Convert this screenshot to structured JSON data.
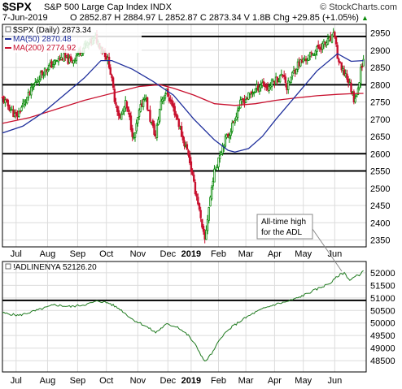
{
  "header": {
    "symbol": "$SPX",
    "name": "S&P 500 Large Cap Index INDX",
    "date": "7-Jun-2019",
    "ohlc": "O 2852.87  H 2884.97  L 2852.87  C 2873.34  V 1.8B  Chg +29.85 (+1.05%)",
    "chg_arrow": "▲",
    "source": "© StockCharts.com"
  },
  "colors": {
    "up_candle": "#0a8a0a",
    "down_candle": "#c8102e",
    "ma50": "#1f2f9c",
    "ma200": "#c8102e",
    "adl": "#1f7a1f",
    "grid": "#dcdcdc",
    "horizontal_lines": "#000000"
  },
  "chart_data": [
    {
      "type": "candlestick",
      "legend": [
        {
          "label": "$SPX (Daily) 2873.34"
        },
        {
          "label": "MA(50) 2870.48",
          "color": "#1f2f9c"
        },
        {
          "label": "MA(200) 2774.92",
          "color": "#c8102e"
        }
      ],
      "ylim": [
        2330,
        2975
      ],
      "yticks": [
        2350,
        2400,
        2450,
        2500,
        2550,
        2600,
        2650,
        2700,
        2750,
        2800,
        2850,
        2900,
        2950
      ],
      "hlines": [
        2940,
        2800,
        2600,
        2550
      ],
      "price_path": [
        [
          0,
          2760
        ],
        [
          5,
          2735
        ],
        [
          10,
          2705
        ],
        [
          15,
          2742
        ],
        [
          20,
          2775
        ],
        [
          25,
          2812
        ],
        [
          30,
          2840
        ],
        [
          35,
          2855
        ],
        [
          40,
          2870
        ],
        [
          45,
          2880
        ],
        [
          50,
          2865
        ],
        [
          55,
          2890
        ],
        [
          60,
          2910
        ],
        [
          65,
          2925
        ],
        [
          68,
          2935
        ],
        [
          72,
          2910
        ],
        [
          75,
          2890
        ],
        [
          78,
          2860
        ],
        [
          82,
          2760
        ],
        [
          86,
          2700
        ],
        [
          90,
          2745
        ],
        [
          93,
          2700
        ],
        [
          96,
          2640
        ],
        [
          100,
          2720
        ],
        [
          104,
          2770
        ],
        [
          108,
          2700
        ],
        [
          112,
          2650
        ],
        [
          116,
          2755
        ],
        [
          120,
          2780
        ],
        [
          124,
          2740
        ],
        [
          128,
          2700
        ],
        [
          132,
          2640
        ],
        [
          136,
          2600
        ],
        [
          140,
          2510
        ],
        [
          143,
          2460
        ],
        [
          146,
          2380
        ],
        [
          148,
          2350
        ],
        [
          151,
          2445
        ],
        [
          154,
          2530
        ],
        [
          158,
          2590
        ],
        [
          162,
          2635
        ],
        [
          166,
          2660
        ],
        [
          170,
          2705
        ],
        [
          174,
          2745
        ],
        [
          178,
          2760
        ],
        [
          182,
          2775
        ],
        [
          186,
          2790
        ],
        [
          190,
          2805
        ],
        [
          194,
          2790
        ],
        [
          198,
          2810
        ],
        [
          202,
          2820
        ],
        [
          206,
          2830
        ],
        [
          208,
          2790
        ],
        [
          212,
          2830
        ],
        [
          216,
          2860
        ],
        [
          220,
          2870
        ],
        [
          224,
          2880
        ],
        [
          228,
          2895
        ],
        [
          232,
          2910
        ],
        [
          236,
          2920
        ],
        [
          240,
          2930
        ],
        [
          243,
          2945
        ],
        [
          245,
          2880
        ],
        [
          248,
          2840
        ],
        [
          251,
          2830
        ],
        [
          254,
          2800
        ],
        [
          257,
          2760
        ],
        [
          260,
          2780
        ],
        [
          262,
          2850
        ],
        [
          264,
          2873
        ]
      ],
      "ma50": [
        [
          0,
          2660
        ],
        [
          15,
          2680
        ],
        [
          30,
          2720
        ],
        [
          45,
          2770
        ],
        [
          60,
          2820
        ],
        [
          72,
          2870
        ],
        [
          80,
          2870
        ],
        [
          95,
          2845
        ],
        [
          110,
          2810
        ],
        [
          125,
          2770
        ],
        [
          140,
          2700
        ],
        [
          155,
          2640
        ],
        [
          165,
          2610
        ],
        [
          170,
          2605
        ],
        [
          180,
          2615
        ],
        [
          190,
          2650
        ],
        [
          200,
          2700
        ],
        [
          215,
          2770
        ],
        [
          230,
          2840
        ],
        [
          245,
          2890
        ],
        [
          255,
          2868
        ],
        [
          264,
          2870
        ]
      ],
      "ma200": [
        [
          0,
          2688
        ],
        [
          20,
          2705
        ],
        [
          40,
          2730
        ],
        [
          60,
          2755
        ],
        [
          80,
          2775
        ],
        [
          100,
          2795
        ],
        [
          115,
          2800
        ],
        [
          125,
          2790
        ],
        [
          140,
          2770
        ],
        [
          155,
          2745
        ],
        [
          170,
          2740
        ],
        [
          185,
          2745
        ],
        [
          200,
          2755
        ],
        [
          215,
          2762
        ],
        [
          230,
          2768
        ],
        [
          245,
          2772
        ],
        [
          255,
          2774
        ],
        [
          264,
          2775
        ]
      ]
    },
    {
      "type": "line",
      "legend": [
        {
          "label": "!ADLINENYA 52126.20"
        }
      ],
      "ylim": [
        48050,
        52450
      ],
      "yticks": [
        48500,
        49000,
        49500,
        50000,
        50500,
        51000,
        51500,
        52000
      ],
      "hlines": [
        50900
      ],
      "annotation": "All-time high for the ADL",
      "values": [
        [
          0,
          50400
        ],
        [
          12,
          50300
        ],
        [
          25,
          50500
        ],
        [
          38,
          50720
        ],
        [
          50,
          50650
        ],
        [
          62,
          50750
        ],
        [
          70,
          50880
        ],
        [
          78,
          50790
        ],
        [
          86,
          50550
        ],
        [
          95,
          50150
        ],
        [
          104,
          49900
        ],
        [
          112,
          49620
        ],
        [
          120,
          49950
        ],
        [
          128,
          49850
        ],
        [
          136,
          49500
        ],
        [
          142,
          49050
        ],
        [
          148,
          48450
        ],
        [
          154,
          48850
        ],
        [
          160,
          49450
        ],
        [
          168,
          49850
        ],
        [
          176,
          50150
        ],
        [
          184,
          50400
        ],
        [
          192,
          50600
        ],
        [
          200,
          50750
        ],
        [
          208,
          50850
        ],
        [
          216,
          51000
        ],
        [
          224,
          51200
        ],
        [
          232,
          51400
        ],
        [
          240,
          51600
        ],
        [
          246,
          51900
        ],
        [
          250,
          52000
        ],
        [
          254,
          51700
        ],
        [
          258,
          51850
        ],
        [
          262,
          51950
        ],
        [
          264,
          52126
        ]
      ]
    }
  ],
  "x_axis": {
    "ticks": [
      {
        "label": "Jul",
        "x": 10
      },
      {
        "label": "Aug",
        "x": 33
      },
      {
        "label": "Sep",
        "x": 55
      },
      {
        "label": "Oct",
        "x": 76
      },
      {
        "label": "Nov",
        "x": 99
      },
      {
        "label": "Dec",
        "x": 121
      },
      {
        "label": "2019",
        "x": 138
      },
      {
        "label": "Feb",
        "x": 158
      },
      {
        "label": "Mar",
        "x": 178
      },
      {
        "label": "Apr",
        "x": 199
      },
      {
        "label": "May",
        "x": 220
      },
      {
        "label": "Jun",
        "x": 243
      }
    ],
    "range": [
      0,
      266
    ]
  }
}
